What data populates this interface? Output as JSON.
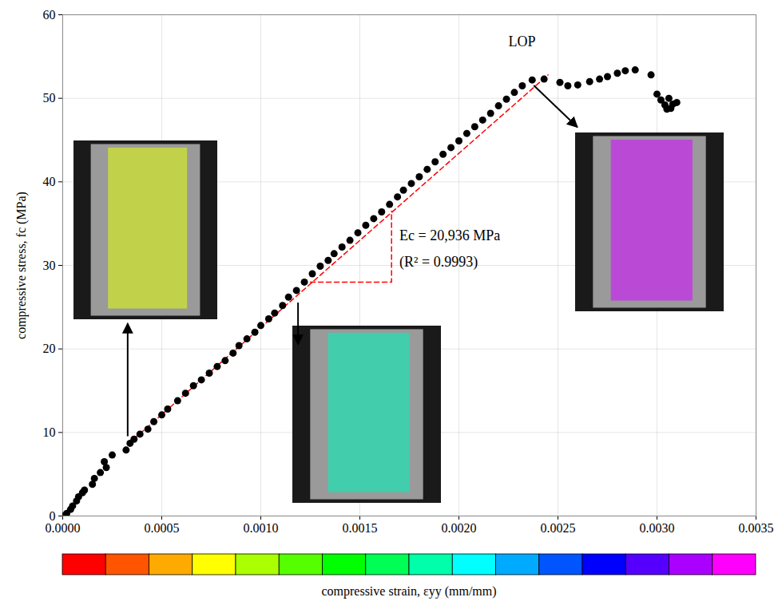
{
  "chart_data": {
    "type": "scatter",
    "color": "#000000",
    "marker": "circle",
    "x": [
      0,
      2e-05,
      4e-05,
      5e-05,
      7e-05,
      8e-05,
      0.0001,
      0.00011,
      0.00015,
      0.00016,
      0.00019,
      0.00021,
      0.00022,
      0.00025,
      0.00032,
      0.00034,
      0.00036,
      0.00039,
      0.00043,
      0.00046,
      0.0005,
      0.00053,
      0.00058,
      0.00062,
      0.00066,
      0.0007,
      0.00074,
      0.00078,
      0.00082,
      0.00086,
      0.00089,
      0.00093,
      0.00097,
      0.001,
      0.00104,
      0.00107,
      0.00111,
      0.00114,
      0.00118,
      0.00122,
      0.00126,
      0.0013,
      0.00134,
      0.00137,
      0.00141,
      0.00145,
      0.00149,
      0.00153,
      0.00157,
      0.00161,
      0.00165,
      0.00169,
      0.00172,
      0.00176,
      0.0018,
      0.00184,
      0.00188,
      0.00192,
      0.00196,
      0.002,
      0.00204,
      0.00208,
      0.00212,
      0.00216,
      0.0022,
      0.00224,
      0.00228,
      0.00232,
      0.00237,
      0.00243,
      0.00251,
      0.00255,
      0.0026,
      0.00266,
      0.00271,
      0.00275,
      0.0028,
      0.00284,
      0.00289,
      0.00297,
      0.003,
      0.00302,
      0.00304,
      0.00307,
      0.00308,
      0.00306,
      0.0031,
      0.00305
    ],
    "values": [
      0,
      0.3,
      0.8,
      1.2,
      1.8,
      2.3,
      2.8,
      3.1,
      3.8,
      4.5,
      5.2,
      6.5,
      5.8,
      7.3,
      7.9,
      8.7,
      9.2,
      9.8,
      10.4,
      11.3,
      12.1,
      12.8,
      13.8,
      14.7,
      15.6,
      16.3,
      17.1,
      17.9,
      18.6,
      19.5,
      20.4,
      21.2,
      22.0,
      22.8,
      23.6,
      24.3,
      25.2,
      26.2,
      27.0,
      28.0,
      29.0,
      29.9,
      30.6,
      31.4,
      32.2,
      33.0,
      33.9,
      34.8,
      35.6,
      36.4,
      37.3,
      38.2,
      39.0,
      39.8,
      40.6,
      41.5,
      42.4,
      43.3,
      44.1,
      44.9,
      45.8,
      46.6,
      47.4,
      48.2,
      49.1,
      49.9,
      50.7,
      51.5,
      52.2,
      52.3,
      51.9,
      51.5,
      51.6,
      52.0,
      52.3,
      52.6,
      53.0,
      53.3,
      53.4,
      52.8,
      50.5,
      49.8,
      49.2,
      48.8,
      49.3,
      50.0,
      49.5,
      48.7
    ],
    "fit": {
      "x": [
        0.00033,
        0.00245
      ],
      "values": [
        8.6,
        52.8
      ],
      "color": "#ff0000",
      "line_style": "dashed"
    },
    "slope_triangle": {
      "x": [
        0.00125,
        0.00166,
        0.00166
      ],
      "values": [
        28.0,
        28.0,
        36.5
      ],
      "color": "#ff0000",
      "line_style": "dashed"
    },
    "annotations": [
      {
        "text": "LOP",
        "x": 0.00225,
        "y": 56.8
      },
      {
        "text": "Ec = 20,936 MPa",
        "x": 0.0017,
        "y": 33.6
      },
      {
        "text": "(R² = 0.9993)",
        "x": 0.0017,
        "y": 30.4
      }
    ],
    "insets": [
      {
        "color": "#c8dc3c",
        "arrow": [
          [
            0.00033,
            9.5
          ],
          [
            0.00033,
            23.0
          ]
        ]
      },
      {
        "color": "#33d6b0",
        "arrow": [
          [
            0.00119,
            25.5
          ],
          [
            0.00119,
            20.5
          ]
        ]
      },
      {
        "color": "#c03ce0",
        "arrow": [
          [
            0.00238,
            51.5
          ],
          [
            0.0026,
            46.5
          ]
        ]
      }
    ],
    "ylabel": "compressive stress, fc (MPa)",
    "xlim": [
      0,
      0.0035
    ],
    "xticks": [
      {
        "value": 0,
        "label": "0.0000"
      },
      {
        "value": 0.0005,
        "label": "0.0005"
      },
      {
        "value": 0.001,
        "label": "0.0010"
      },
      {
        "value": 0.0015,
        "label": "0.0015"
      },
      {
        "value": 0.002,
        "label": "0.0020"
      },
      {
        "value": 0.0025,
        "label": "0.0025"
      },
      {
        "value": 0.003,
        "label": "0.0030"
      },
      {
        "value": 0.0035,
        "label": "0.0035"
      }
    ],
    "ylim": [
      0,
      60
    ],
    "yticks": [
      0,
      10,
      20,
      30,
      40,
      50,
      60
    ],
    "grid": true,
    "colorbar": {
      "range": [
        0,
        0.0035
      ],
      "label": "compressive strain, εyy (mm/mm)",
      "colors": [
        "#ff0000",
        "#ff5500",
        "#ffaa00",
        "#ffff00",
        "#aaff00",
        "#55ff00",
        "#00ff00",
        "#00ff55",
        "#00ffaa",
        "#00ffff",
        "#00aaff",
        "#0055ff",
        "#0000ff",
        "#5500ff",
        "#aa00ff",
        "#ff00ff"
      ]
    }
  }
}
